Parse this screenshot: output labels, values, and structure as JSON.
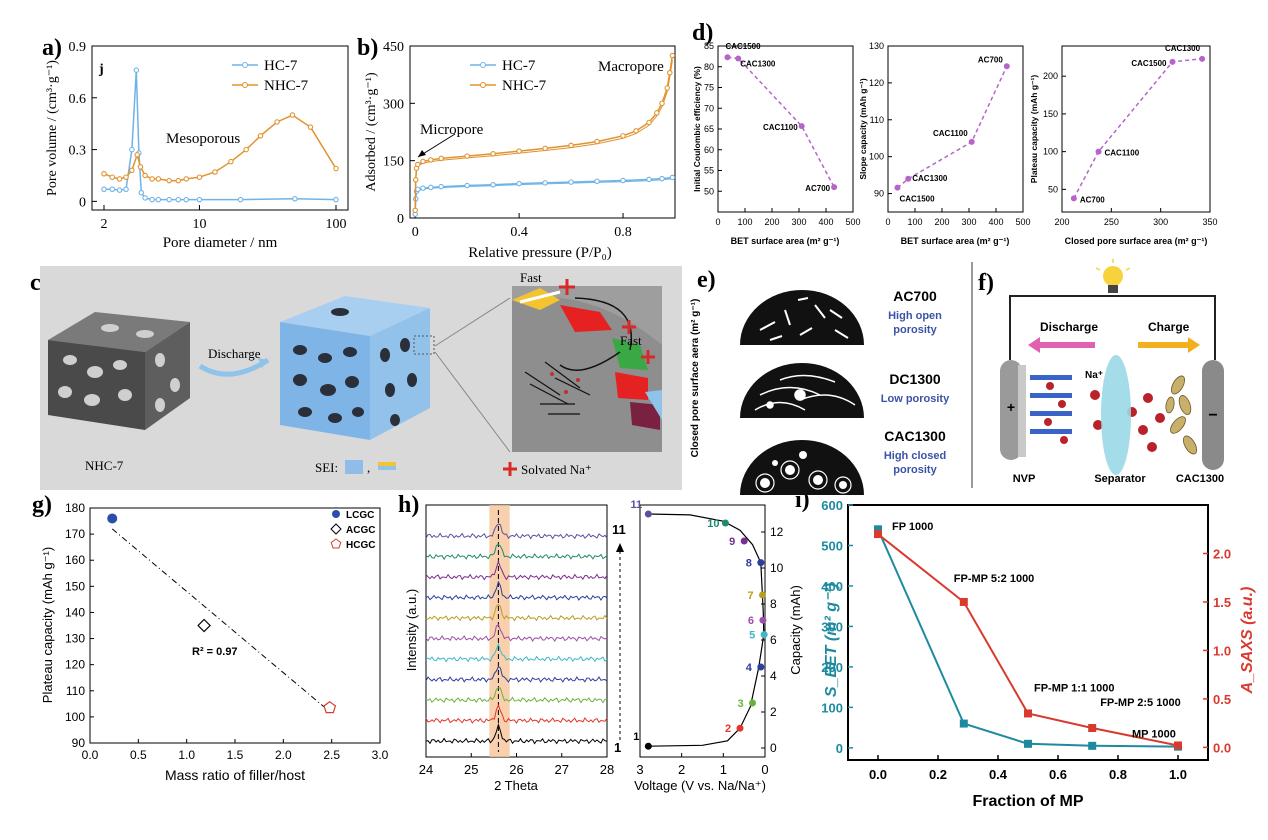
{
  "panel_labels": {
    "a": "a)",
    "b": "b)",
    "c": "c)",
    "d": "d)",
    "e": "e)",
    "f": "f)",
    "g": "g)",
    "h": "h)",
    "i": "i)"
  },
  "colors": {
    "hc": "#6fb4e6",
    "nhc": "#e0932e",
    "purple": "#b565c7",
    "teal": "#1e8aa0",
    "red": "#d93a2e",
    "blue_dot": "#2b4fa8",
    "hc_cyan": "#87c8d9",
    "sei_blue": "#8fbce8"
  },
  "chart_data": [
    {
      "id": "a",
      "type": "line",
      "corner_mark": "j",
      "xlabel": "Pore diameter / nm",
      "ylabel": "Pore volume / (cm³·g⁻¹)",
      "xscale": "log",
      "xlim": [
        2,
        100
      ],
      "ylim": [
        -0.05,
        0.9
      ],
      "xticks": [
        "2",
        "10",
        "100"
      ],
      "yticks": [
        "0",
        "0.3",
        "0.6",
        "0.9"
      ],
      "annotations": [
        "Mesoporous"
      ],
      "legend": "top-right",
      "series": [
        {
          "name": "HC-7",
          "x": [
            2,
            2.3,
            2.6,
            2.9,
            3.2,
            3.45,
            3.6,
            3.75,
            4.0,
            4.5,
            5,
            6,
            7,
            8,
            10,
            20,
            50,
            100
          ],
          "y": [
            0.07,
            0.07,
            0.065,
            0.07,
            0.3,
            0.76,
            0.28,
            0.05,
            0.02,
            0.01,
            0.01,
            0.01,
            0.01,
            0.01,
            0.01,
            0.01,
            0.015,
            0.01
          ]
        },
        {
          "name": "NHC-7",
          "x": [
            2,
            2.3,
            2.6,
            2.9,
            3.2,
            3.5,
            3.7,
            4.0,
            4.5,
            5,
            6,
            7,
            8,
            10,
            13,
            17,
            22,
            28,
            37,
            48,
            65,
            100
          ],
          "y": [
            0.16,
            0.14,
            0.13,
            0.14,
            0.18,
            0.27,
            0.2,
            0.15,
            0.13,
            0.13,
            0.12,
            0.12,
            0.13,
            0.14,
            0.17,
            0.23,
            0.3,
            0.38,
            0.46,
            0.5,
            0.43,
            0.19
          ]
        }
      ]
    },
    {
      "id": "b",
      "type": "line",
      "xlabel": "Relative pressure (P/P₀)",
      "ylabel": "Adsorbed / (cm³·g⁻¹)",
      "xlim": [
        -0.02,
        1.0
      ],
      "ylim": [
        0,
        450
      ],
      "xticks": [
        "0",
        "0.4",
        "0.8"
      ],
      "yticks": [
        "0",
        "150",
        "300",
        "450"
      ],
      "annotations": [
        "Micropore",
        "Macropore"
      ],
      "legend": "top-left",
      "series": [
        {
          "name": "HC-7",
          "x": [
            0,
            0.002,
            0.005,
            0.01,
            0.03,
            0.06,
            0.1,
            0.2,
            0.3,
            0.4,
            0.5,
            0.6,
            0.7,
            0.8,
            0.9,
            0.95,
            0.99
          ],
          "y": [
            10,
            50,
            70,
            75,
            78,
            80,
            82,
            85,
            87,
            90,
            92,
            94,
            96,
            98,
            101,
            103,
            106
          ]
        },
        {
          "name": "NHC-7",
          "x": [
            0,
            0.002,
            0.005,
            0.01,
            0.03,
            0.06,
            0.1,
            0.2,
            0.3,
            0.4,
            0.5,
            0.6,
            0.7,
            0.8,
            0.85,
            0.9,
            0.93,
            0.95,
            0.97,
            0.98,
            0.99
          ],
          "y": [
            20,
            100,
            130,
            140,
            148,
            152,
            156,
            162,
            168,
            175,
            182,
            190,
            200,
            215,
            228,
            250,
            275,
            300,
            340,
            380,
            425
          ]
        }
      ]
    },
    {
      "id": "d1",
      "type": "scatter",
      "xlabel": "BET surface area (m² g⁻¹)",
      "ylabel": "Initial Coulombic efficiency (%)",
      "xlim": [
        0,
        500
      ],
      "ylim": [
        45,
        85
      ],
      "xticks": [
        "0",
        "100",
        "200",
        "300",
        "400",
        "500"
      ],
      "yticks": [
        "50",
        "55",
        "60",
        "65",
        "70",
        "75",
        "80",
        "85"
      ],
      "points": [
        {
          "label": "CAC1500",
          "x": 35,
          "y": 82.3
        },
        {
          "label": "CAC1300",
          "x": 75,
          "y": 82
        },
        {
          "label": "CAC1100",
          "x": 310,
          "y": 65.7
        },
        {
          "label": "AC700",
          "x": 430,
          "y": 51
        }
      ]
    },
    {
      "id": "d2",
      "type": "scatter",
      "xlabel": "BET surface area (m² g⁻¹)",
      "ylabel": "Slope capacity (mAh g⁻¹)",
      "xlim": [
        0,
        500
      ],
      "ylim": [
        85,
        130
      ],
      "xticks": [
        "0",
        "100",
        "200",
        "300",
        "400",
        "500"
      ],
      "yticks": [
        "90",
        "100",
        "110",
        "120",
        "130"
      ],
      "points": [
        {
          "label": "CAC1500",
          "x": 35,
          "y": 91.6
        },
        {
          "label": "CAC1300",
          "x": 75,
          "y": 94
        },
        {
          "label": "CAC1100",
          "x": 310,
          "y": 104
        },
        {
          "label": "AC700",
          "x": 440,
          "y": 124.5
        }
      ]
    },
    {
      "id": "d3",
      "type": "scatter",
      "xlabel": "Closed pore surface area (m² g⁻¹)",
      "ylabel": "Plateau capacity (mAh g⁻¹)",
      "xlim": [
        200,
        350
      ],
      "ylim": [
        20,
        240
      ],
      "xticks": [
        "200",
        "250",
        "300",
        "350"
      ],
      "yticks": [
        "50",
        "100",
        "150",
        "200"
      ],
      "points": [
        {
          "label": "AC700",
          "x": 212,
          "y": 38
        },
        {
          "label": "CAC1100",
          "x": 237,
          "y": 100
        },
        {
          "label": "CAC1500",
          "x": 312,
          "y": 219
        },
        {
          "label": "CAC1300",
          "x": 342,
          "y": 223
        }
      ]
    },
    {
      "id": "g",
      "type": "scatter",
      "xlabel": "Mass ratio of filler/host",
      "ylabel": "Plateau capacity  (mAh g⁻¹)",
      "xlim": [
        0,
        3.0
      ],
      "ylim": [
        90,
        180
      ],
      "xticks": [
        "0.0",
        "0.5",
        "1.0",
        "1.5",
        "2.0",
        "2.5",
        "3.0"
      ],
      "yticks": [
        "90",
        "100",
        "110",
        "120",
        "130",
        "140",
        "150",
        "160",
        "170",
        "180"
      ],
      "annotations": [
        "R² = 0.97"
      ],
      "legend": "top-right",
      "series": [
        {
          "name": "LCGC",
          "x": [
            0.23
          ],
          "y": [
            176
          ]
        },
        {
          "name": "ACGC",
          "x": [
            1.18
          ],
          "y": [
            135
          ]
        },
        {
          "name": "HCGC",
          "x": [
            2.48
          ],
          "y": [
            103.5
          ]
        }
      ],
      "fit": {
        "x": [
          0.23,
          2.48
        ],
        "y": [
          172,
          102
        ]
      }
    },
    {
      "id": "h1",
      "type": "line",
      "xlabel": "2 Theta",
      "ylabel": "Intensity (a.u.)",
      "xlim": [
        24,
        28
      ],
      "xticks": [
        "24",
        "25",
        "26",
        "27",
        "28"
      ],
      "annotations": [
        "11",
        "1"
      ],
      "peak_x": 25.6,
      "n_traces": 11
    },
    {
      "id": "h2",
      "type": "line",
      "xlabel": "Voltage (V vs. Na/Na⁺)",
      "ylabel": "Capacity (mAh)",
      "xlim": [
        3,
        0
      ],
      "ylim": [
        -0.5,
        13.5
      ],
      "xticks": [
        "3",
        "2",
        "1",
        "0"
      ],
      "yticks": [
        "0",
        "2",
        "4",
        "6",
        "8",
        "10",
        "12"
      ],
      "points": [
        {
          "label": "1",
          "x": 2.8,
          "y": 0.1,
          "color": "#000000"
        },
        {
          "label": "2",
          "x": 0.6,
          "y": 1.1,
          "color": "#e2342a"
        },
        {
          "label": "3",
          "x": 0.3,
          "y": 2.5,
          "color": "#6ab23c"
        },
        {
          "label": "4",
          "x": 0.1,
          "y": 4.5,
          "color": "#2b3e9c"
        },
        {
          "label": "5",
          "x": 0.02,
          "y": 6.3,
          "color": "#3fb7c9"
        },
        {
          "label": "6",
          "x": 0.05,
          "y": 7.1,
          "color": "#9b4fa8"
        },
        {
          "label": "7",
          "x": 0.06,
          "y": 8.5,
          "color": "#b3a020"
        },
        {
          "label": "8",
          "x": 0.1,
          "y": 10.3,
          "color": "#2b3e9c"
        },
        {
          "label": "9",
          "x": 0.5,
          "y": 11.5,
          "color": "#7a2e8f"
        },
        {
          "label": "10",
          "x": 0.95,
          "y": 12.5,
          "color": "#1f8a6f"
        },
        {
          "label": "11",
          "x": 2.8,
          "y": 13.0,
          "color": "#5a4fa0"
        }
      ]
    },
    {
      "id": "i",
      "type": "line",
      "xlabel": "Fraction of MP",
      "ylabel_left": "S_BET (m² g⁻¹)",
      "ylabel_right": "A_SAXS (a.u.)",
      "xlim": [
        -0.1,
        1.1
      ],
      "ylim_left": [
        -30,
        600
      ],
      "ylim_right": [
        -0.13,
        2.5
      ],
      "xticks": [
        "0.0",
        "0.2",
        "0.4",
        "0.6",
        "0.8",
        "1.0"
      ],
      "yticks_left": [
        "0",
        "100",
        "200",
        "300",
        "400",
        "500",
        "600"
      ],
      "yticks_right": [
        "0.0",
        "0.5",
        "1.0",
        "1.5",
        "2.0"
      ],
      "categories": [
        "FP 1000",
        "FP-MP 5:2 1000",
        "FP-MP 1:1 1000",
        "FP-MP 2:5 1000",
        "MP 1000"
      ],
      "series": [
        {
          "name": "S_BET",
          "axis": "left",
          "x": [
            0,
            0.286,
            0.5,
            0.714,
            1.0
          ],
          "y": [
            540,
            60,
            10,
            5,
            3
          ]
        },
        {
          "name": "A_SAXS",
          "axis": "right",
          "x": [
            0,
            0.286,
            0.5,
            0.714,
            1.0
          ],
          "y": [
            2.2,
            1.5,
            0.35,
            0.2,
            0.02
          ]
        }
      ]
    }
  ],
  "panel_c": {
    "sample_label": "NHC-7",
    "arrow_label": "Discharge",
    "fast_label_1": "Fast",
    "fast_label_2": "Fast",
    "sei_label": "SEI:",
    "sei_sep": ",",
    "solvated_label": "Solvated Na⁺"
  },
  "panel_e": {
    "axis_label": "Closed pore surface aera (m² g⁻¹)",
    "items": [
      {
        "name": "AC700",
        "desc_1": "High open",
        "desc_2": "porosity"
      },
      {
        "name": "DC1300",
        "desc_1": "Low porosity",
        "desc_2": ""
      },
      {
        "name": "CAC1300",
        "desc_1": "High closed",
        "desc_2": "porosity"
      }
    ]
  },
  "panel_f": {
    "discharge": "Discharge",
    "charge": "Charge",
    "na_label": "Na⁺",
    "plus": "+",
    "minus": "−",
    "left_label": "NVP",
    "separator_label": "Separator",
    "right_label": "CAC1300"
  }
}
